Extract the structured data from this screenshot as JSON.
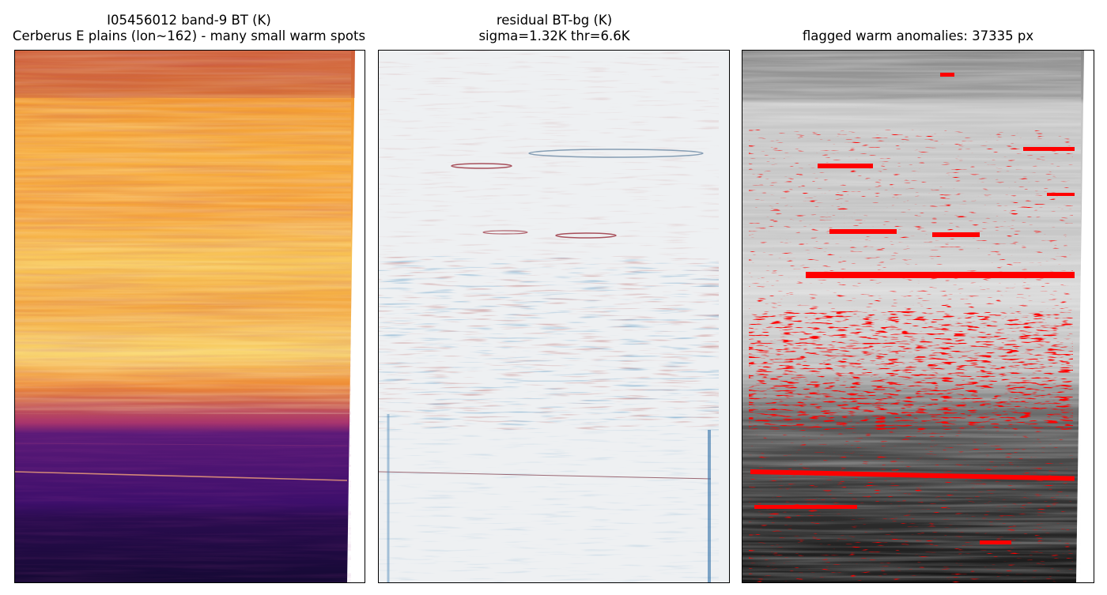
{
  "panels": [
    {
      "id": "bt",
      "title_line1": "I05456012 band-9 BT (K)",
      "title_line2": "Cerberus E plains (lon~162) - many small warm spots",
      "colormap": "inferno",
      "colors": [
        "#1a0b40",
        "#3b0f70",
        "#6a1b7a",
        "#c0456f",
        "#ef7d2a",
        "#f9a93a",
        "#fbe38d"
      ]
    },
    {
      "id": "residual",
      "title_line1": "residual BT-bg (K)",
      "title_line2": "sigma=1.32K thr=6.6K",
      "colormap": "RdBu_r",
      "colors": [
        "#0b4f8f",
        "#6aa6d0",
        "#eef0f2",
        "#f2a98a",
        "#8a0d1c"
      ]
    },
    {
      "id": "flagged",
      "title_line1": "flagged warm anomalies: 37335 px",
      "title_line2": "",
      "colormap": "gray",
      "colors": [
        "#141414",
        "#6f6f6f",
        "#d6d6d6",
        "#ff0000"
      ]
    }
  ]
}
